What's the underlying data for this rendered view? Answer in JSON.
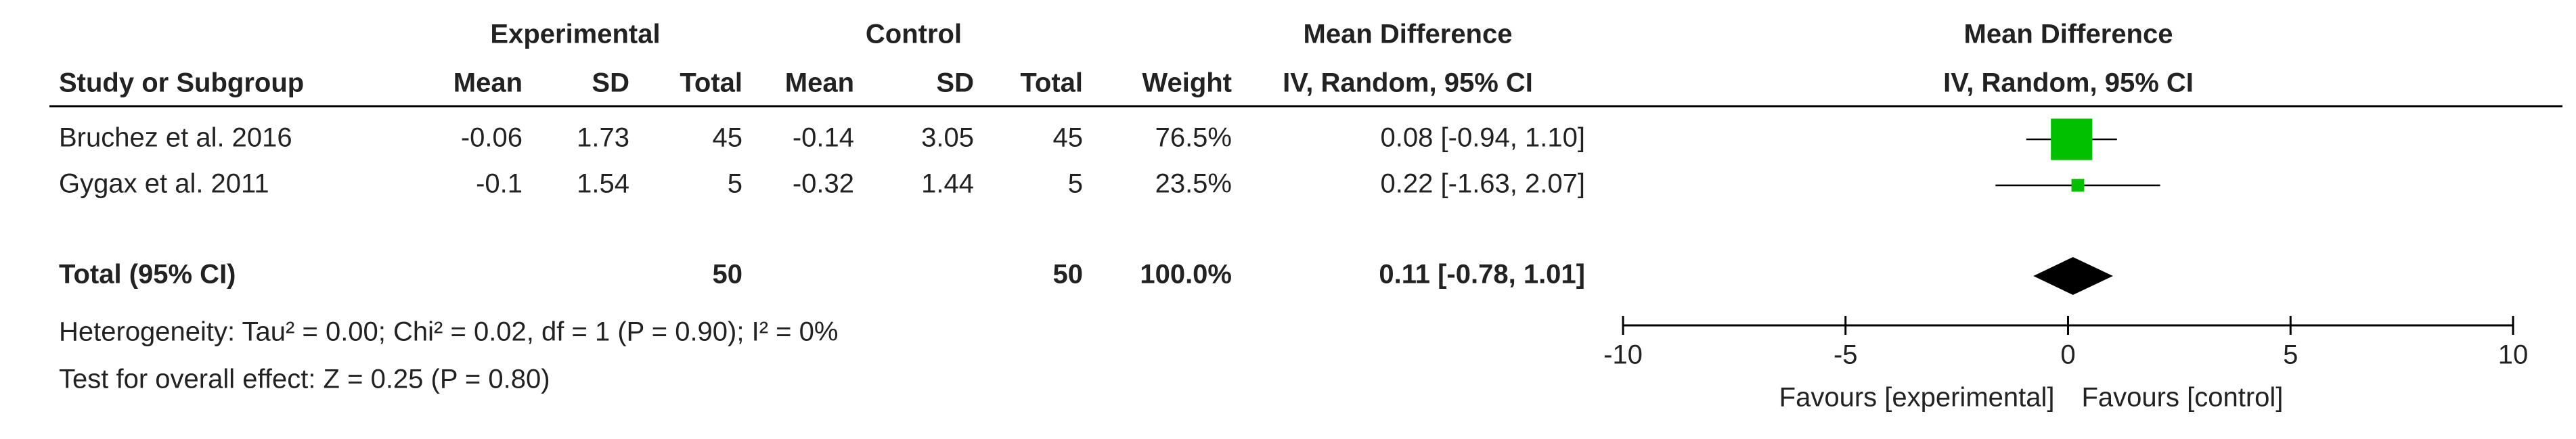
{
  "chart_data": {
    "type": "forest",
    "headers": {
      "experimental": "Experimental",
      "control": "Control",
      "effect_title": "Mean Difference",
      "effect_method": "IV, Random, 95% CI",
      "plot_title": "Mean Difference",
      "plot_method": "IV, Random, 95% CI",
      "study": "Study or Subgroup",
      "columns": [
        "Mean",
        "SD",
        "Total",
        "Mean",
        "SD",
        "Total",
        "Weight"
      ]
    },
    "studies": [
      {
        "name": "Bruchez et al. 2016",
        "experimental": {
          "mean": -0.06,
          "sd": 1.73,
          "total": 45
        },
        "control": {
          "mean": -0.14,
          "sd": 3.05,
          "total": 45
        },
        "weight": {
          "value": 76.5,
          "label": "76.5%"
        },
        "effect": {
          "value": 0.08,
          "low": -0.94,
          "high": 1.1,
          "label": "0.08 [-0.94, 1.10]"
        }
      },
      {
        "name": "Gygax et al. 2011",
        "experimental": {
          "mean": -0.1,
          "sd": 1.54,
          "total": 5
        },
        "control": {
          "mean": -0.32,
          "sd": 1.44,
          "total": 5
        },
        "weight": {
          "value": 23.5,
          "label": "23.5%"
        },
        "effect": {
          "value": 0.22,
          "low": -1.63,
          "high": 2.07,
          "label": "0.22 [-1.63, 2.07]"
        }
      }
    ],
    "total": {
      "name": "Total (95% CI)",
      "experimental_total": 50,
      "control_total": 50,
      "weight": {
        "value": 100,
        "label": "100.0%"
      },
      "effect": {
        "value": 0.11,
        "low": -0.78,
        "high": 1.01,
        "label": "0.11 [-0.78, 1.01]"
      },
      "heterogeneity": "Heterogeneity: Tau² = 0.00; Chi² = 0.02, df = 1 (P = 0.90); I² = 0%",
      "overall_effect": "Test for overall effect: Z = 0.25 (P = 0.80)"
    },
    "xlim": [
      -10,
      10
    ],
    "xticks": [
      -10,
      -5,
      0,
      5,
      10
    ],
    "favours": [
      "Favours [experimental]",
      "Favours [control]"
    ],
    "color": "#00c000",
    "diamond_color": "#000000"
  }
}
